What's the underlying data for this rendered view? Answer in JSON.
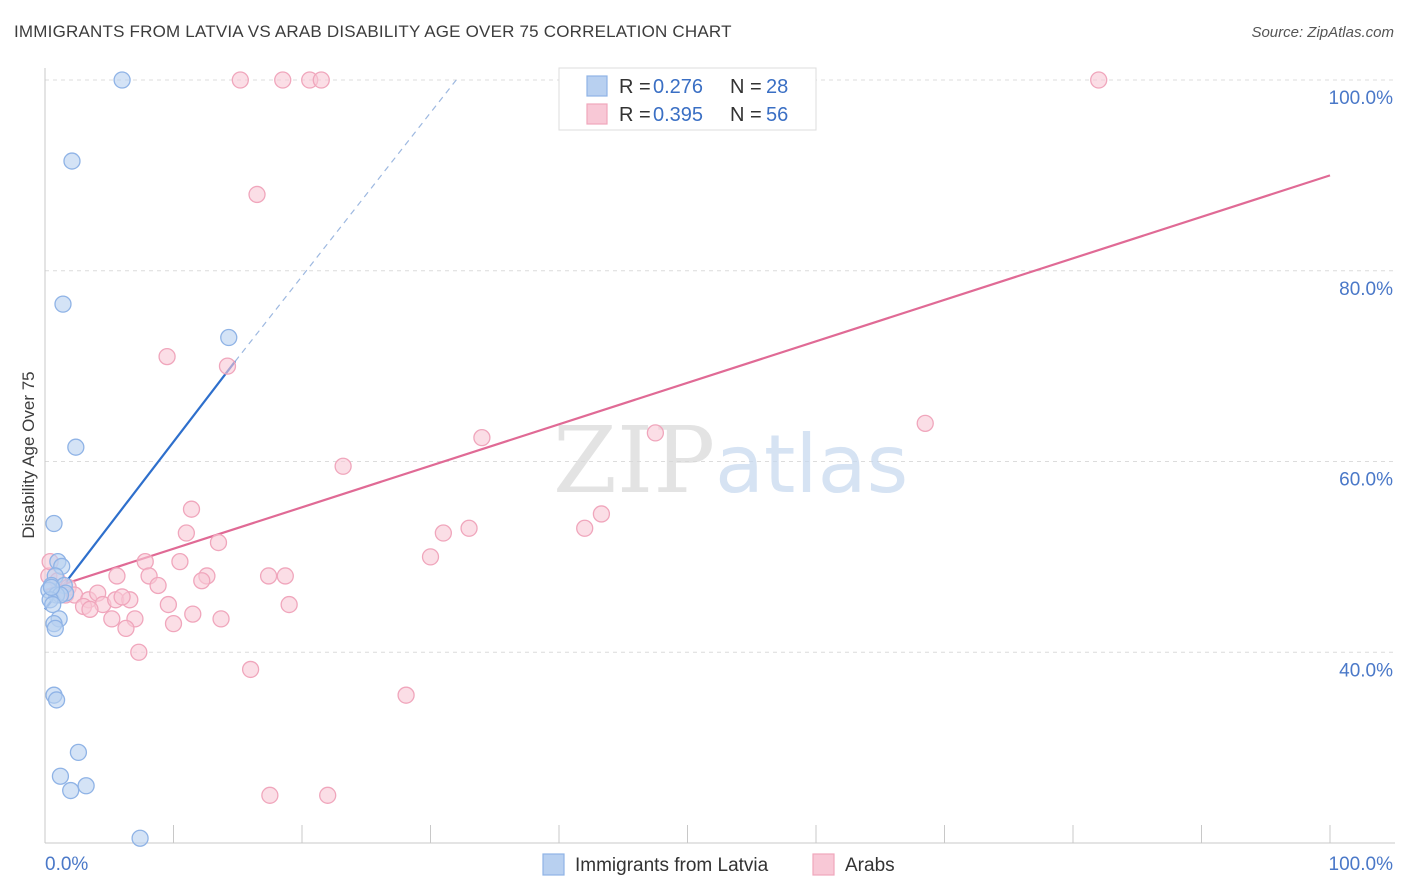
{
  "title": "IMMIGRANTS FROM LATVIA VS ARAB DISABILITY AGE OVER 75 CORRELATION CHART",
  "source": "Source: ZipAtlas.com",
  "watermark": {
    "zip": "ZIP",
    "atlas": "atlas"
  },
  "colors": {
    "blue_fill": "#b8d0f0",
    "blue_stroke": "#8fb3e6",
    "blue_line": "#2e6fcc",
    "pink_fill": "#f8c8d6",
    "pink_stroke": "#f0a6bc",
    "pink_line": "#e06a95",
    "grid": "#dcdcdc",
    "tick_text": "#4a78c8"
  },
  "legend": {
    "rows": [
      {
        "r_label": "R =",
        "r_value": "0.276",
        "n_label": "N =",
        "n_value": "28",
        "series": "blue"
      },
      {
        "r_label": "R =",
        "r_value": "0.395",
        "n_label": "N =",
        "n_value": "56",
        "series": "pink"
      }
    ]
  },
  "chart_data": {
    "type": "scatter",
    "title": "IMMIGRANTS FROM LATVIA VS ARAB DISABILITY AGE OVER 75 CORRELATION CHART",
    "xlabel": "",
    "ylabel": "Disability Age Over 75",
    "xlim": [
      0,
      100
    ],
    "ylim": [
      20,
      100
    ],
    "x_tick_labels": [
      "0.0%",
      "100.0%"
    ],
    "y_tick_labels": [
      "40.0%",
      "60.0%",
      "80.0%",
      "100.0%"
    ],
    "y_ticks": [
      40,
      60,
      80,
      100
    ],
    "grid": true,
    "legend_placement": "top-center",
    "series": [
      {
        "name": "Immigrants from Latvia",
        "color": "blue",
        "points": [
          [
            6.0,
            100.0
          ],
          [
            2.1,
            91.5
          ],
          [
            1.4,
            76.5
          ],
          [
            14.3,
            73.0
          ],
          [
            2.4,
            61.5
          ],
          [
            0.7,
            53.5
          ],
          [
            1.0,
            49.5
          ],
          [
            1.3,
            49.0
          ],
          [
            0.8,
            48.0
          ],
          [
            0.5,
            47.0
          ],
          [
            1.5,
            47.0
          ],
          [
            0.3,
            46.5
          ],
          [
            1.6,
            46.2
          ],
          [
            0.9,
            46.0
          ],
          [
            1.2,
            46.0
          ],
          [
            0.4,
            45.5
          ],
          [
            0.6,
            45.0
          ],
          [
            1.1,
            43.5
          ],
          [
            0.7,
            43.0
          ],
          [
            0.8,
            42.5
          ],
          [
            0.7,
            35.5
          ],
          [
            0.9,
            35.0
          ],
          [
            2.6,
            29.5
          ],
          [
            1.2,
            27.0
          ],
          [
            2.0,
            25.5
          ],
          [
            3.2,
            26.0
          ],
          [
            7.4,
            20.5
          ],
          [
            0.5,
            46.8
          ]
        ]
      },
      {
        "name": "Arabs",
        "color": "pink",
        "points": [
          [
            15.2,
            100.0
          ],
          [
            18.5,
            100.0
          ],
          [
            20.6,
            100.0
          ],
          [
            21.5,
            100.0
          ],
          [
            82.0,
            100.0
          ],
          [
            16.5,
            88.0
          ],
          [
            9.5,
            71.0
          ],
          [
            14.2,
            70.0
          ],
          [
            68.5,
            64.0
          ],
          [
            34.0,
            62.5
          ],
          [
            47.5,
            63.0
          ],
          [
            23.2,
            59.5
          ],
          [
            11.4,
            55.0
          ],
          [
            43.3,
            54.5
          ],
          [
            11.0,
            52.5
          ],
          [
            33.0,
            53.0
          ],
          [
            31.0,
            52.5
          ],
          [
            42.0,
            53.0
          ],
          [
            13.5,
            51.5
          ],
          [
            7.8,
            49.5
          ],
          [
            10.5,
            49.5
          ],
          [
            30.0,
            50.0
          ],
          [
            5.6,
            48.0
          ],
          [
            8.1,
            48.0
          ],
          [
            12.6,
            48.0
          ],
          [
            17.4,
            48.0
          ],
          [
            18.7,
            48.0
          ],
          [
            8.8,
            47.0
          ],
          [
            12.2,
            47.5
          ],
          [
            0.3,
            48.0
          ],
          [
            1.0,
            47.5
          ],
          [
            1.8,
            46.8
          ],
          [
            1.6,
            46.0
          ],
          [
            2.3,
            46.0
          ],
          [
            3.4,
            45.5
          ],
          [
            4.1,
            46.2
          ],
          [
            4.5,
            45.0
          ],
          [
            5.5,
            45.5
          ],
          [
            6.6,
            45.5
          ],
          [
            6.0,
            45.8
          ],
          [
            9.6,
            45.0
          ],
          [
            11.5,
            44.0
          ],
          [
            3.0,
            44.8
          ],
          [
            3.5,
            44.5
          ],
          [
            5.2,
            43.5
          ],
          [
            7.0,
            43.5
          ],
          [
            10.0,
            43.0
          ],
          [
            13.7,
            43.5
          ],
          [
            19.0,
            45.0
          ],
          [
            6.3,
            42.5
          ],
          [
            7.3,
            40.0
          ],
          [
            16.0,
            38.2
          ],
          [
            28.1,
            35.5
          ],
          [
            17.5,
            25.0
          ],
          [
            22.0,
            25.0
          ],
          [
            0.4,
            49.5
          ]
        ]
      }
    ],
    "trend_lines": [
      {
        "series": "Immigrants from Latvia",
        "x": [
          0.0,
          14.8
        ],
        "y": [
          44.5,
          70.5
        ],
        "dashed_extension_to": [
          32.0,
          100.0
        ]
      },
      {
        "series": "Arabs",
        "x": [
          0.0,
          100.0
        ],
        "y": [
          46.5,
          90.0
        ]
      }
    ]
  },
  "bottom_legend": [
    {
      "label": "Immigrants from Latvia",
      "series": "blue"
    },
    {
      "label": "Arabs",
      "series": "pink"
    }
  ]
}
